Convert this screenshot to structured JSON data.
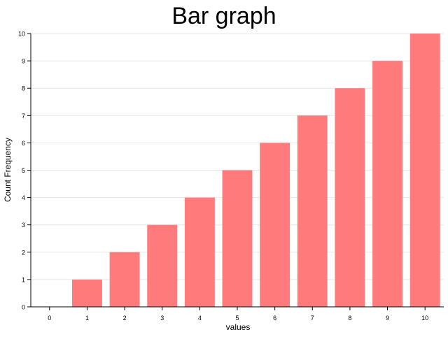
{
  "chart_data": {
    "type": "bar",
    "title": "Bar graph",
    "xlabel": "values",
    "ylabel": "Count Frequency",
    "categories": [
      "0",
      "1",
      "2",
      "3",
      "4",
      "5",
      "6",
      "7",
      "8",
      "9",
      "10"
    ],
    "values": [
      0,
      1,
      2,
      3,
      4,
      5,
      6,
      7,
      8,
      9,
      10
    ],
    "ylim": [
      0,
      10
    ],
    "yticks": [
      0,
      1,
      2,
      3,
      4,
      5,
      6,
      7,
      8,
      9,
      10
    ],
    "grid": true,
    "bar_color": "#ff7b7b",
    "grid_color": "#e8e8e8",
    "axis_color": "#000000"
  }
}
